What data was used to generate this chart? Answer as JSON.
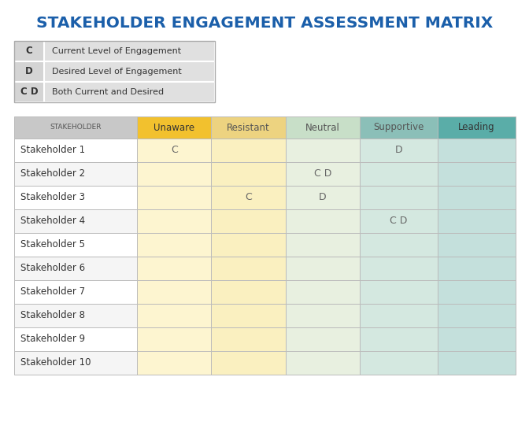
{
  "title": "STAKEHOLDER ENGAGEMENT ASSESSMENT MATRIX",
  "title_color": "#1B5FAA",
  "title_fontsize": 14.5,
  "legend_items": [
    {
      "label": "C",
      "desc": "Current Level of Engagement"
    },
    {
      "label": "D",
      "desc": "Desired Level of Engagement"
    },
    {
      "label": "C D",
      "desc": "Both Current and Desired"
    }
  ],
  "legend_bg": "#E0E0E0",
  "legend_label_bg": "#D4D4D4",
  "col_headers": [
    "STAKEHOLDER",
    "Unaware",
    "Resistant",
    "Neutral",
    "Supportive",
    "Leading"
  ],
  "col_header_colors": [
    "#C8C8C8",
    "#F2C12E",
    "#EDD380",
    "#C8DFC8",
    "#8BBFB8",
    "#5AADA8"
  ],
  "col_header_text_colors": [
    "#555555",
    "#333333",
    "#555555",
    "#555555",
    "#555555",
    "#333333"
  ],
  "stakeholders": [
    "Stakeholder 1",
    "Stakeholder 2",
    "Stakeholder 3",
    "Stakeholder 4",
    "Stakeholder 5",
    "Stakeholder 6",
    "Stakeholder 7",
    "Stakeholder 8",
    "Stakeholder 9",
    "Stakeholder 10"
  ],
  "cell_data": {
    "0": {
      "1": "C",
      "4": "D"
    },
    "1": {
      "3": "C D"
    },
    "2": {
      "2": "C",
      "3": "D"
    },
    "3": {
      "4": "C D"
    }
  },
  "col_bg_colors": [
    "#FFFFFF",
    "#FDF5D0",
    "#FAF0C0",
    "#E8F0E0",
    "#D4E8E0",
    "#C4E0DC"
  ],
  "grid_color": "#BBBBBB",
  "fig_width": 6.72,
  "fig_height": 5.4,
  "dpi": 100
}
